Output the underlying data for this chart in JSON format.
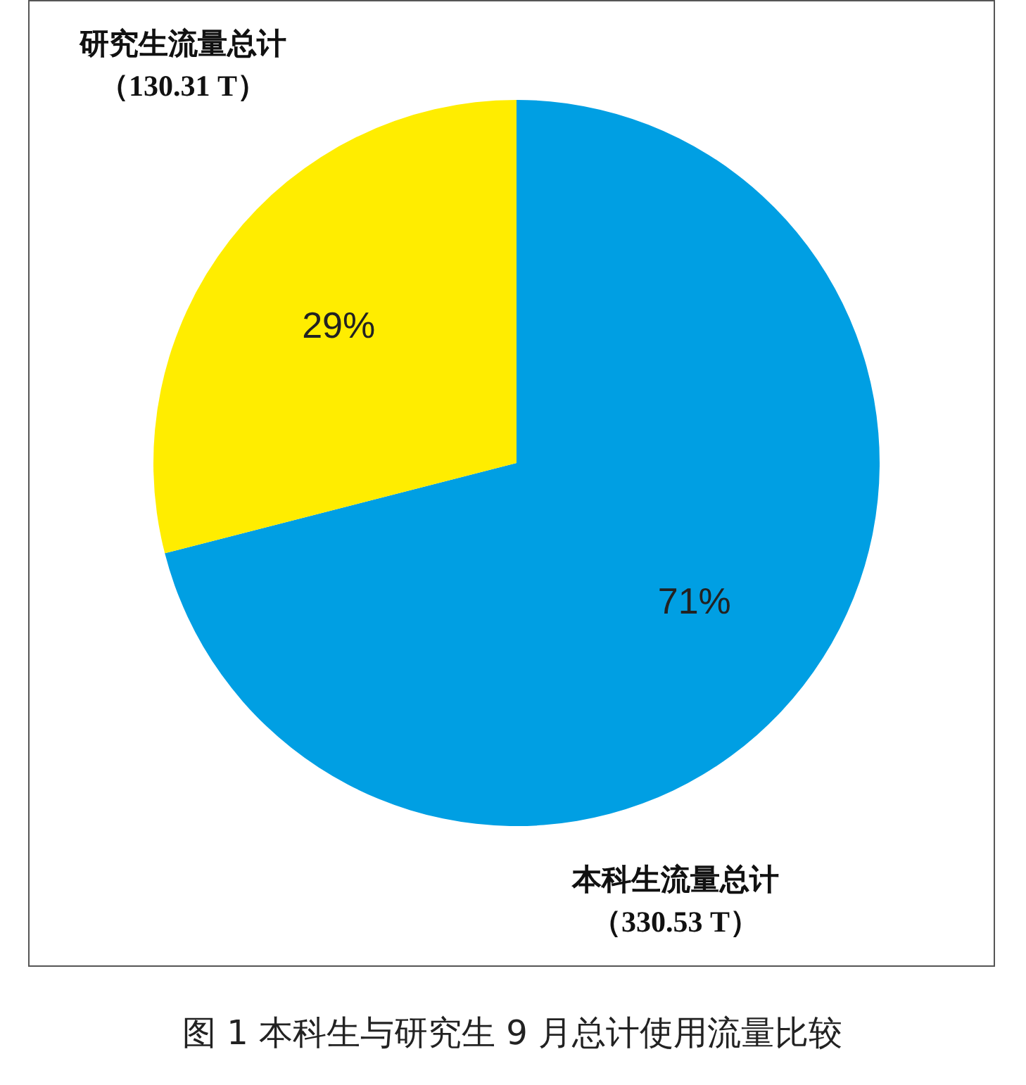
{
  "chart_data": {
    "type": "pie",
    "title": "图 1  本科生与研究生 9 月总计使用流量比较",
    "categories": [
      "本科生流量总计",
      "研究生流量总计"
    ],
    "values": [
      71,
      29
    ],
    "colors": [
      "#009fe3",
      "#ffed00"
    ],
    "value_labels": [
      "71%",
      "29%"
    ],
    "annotations": [
      "（330.53 T）",
      "（130.31 T）"
    ]
  }
}
